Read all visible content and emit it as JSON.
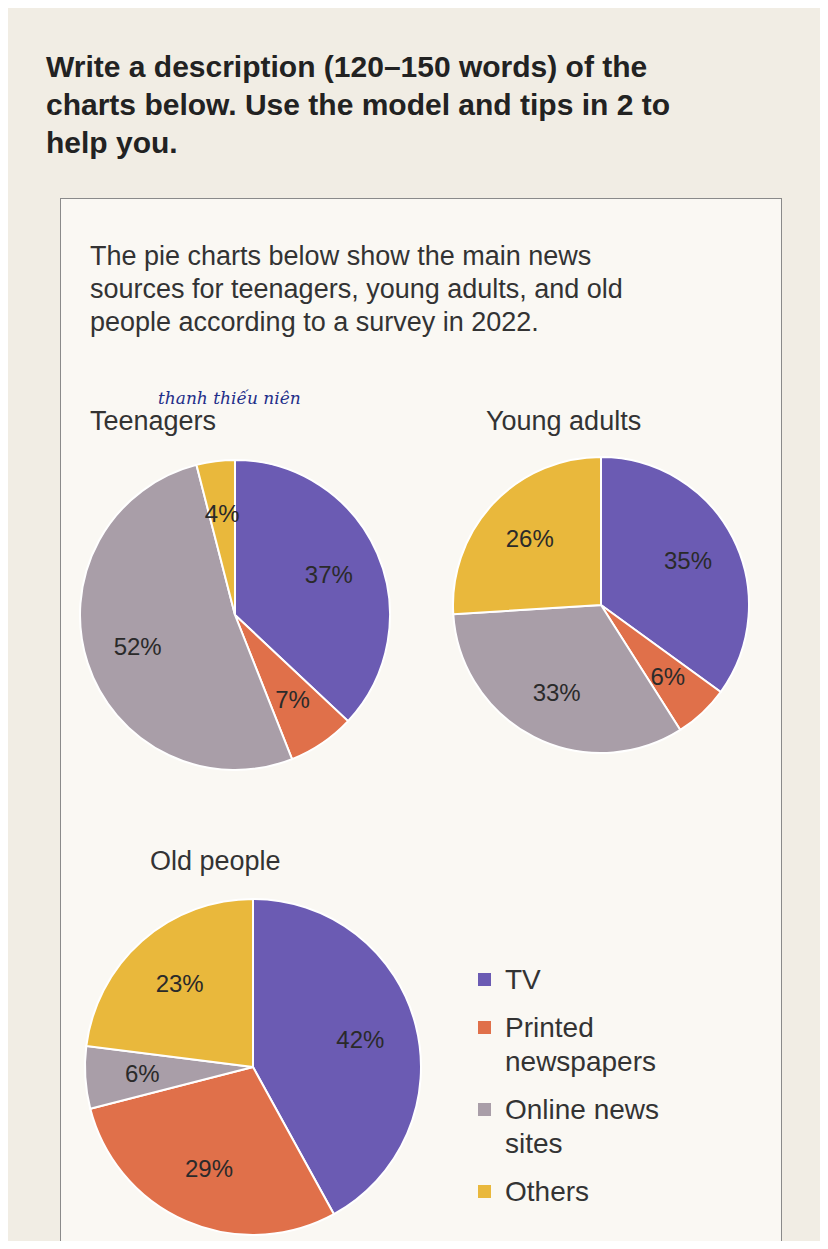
{
  "instruction": "Write a description (120–150 words) of the charts below. Use the model and tips in 2 to help you.",
  "description": "The pie charts below show the main news sources for teenagers, young adults, and old people according to a survey in 2022.",
  "chart_data": [
    {
      "type": "pie",
      "title": "Teenagers",
      "annotation": "thanh thiếu niên",
      "categories": [
        "TV",
        "Printed newspapers",
        "Online news sites",
        "Others"
      ],
      "values": [
        37,
        7,
        52,
        4
      ],
      "value_labels": [
        "37%",
        "7%",
        "52%",
        "4%"
      ],
      "colors": [
        "#6b5bb3",
        "#e0704a",
        "#a99ea8",
        "#e9b83c"
      ],
      "data_labels": true
    },
    {
      "type": "pie",
      "title": "Young adults",
      "categories": [
        "TV",
        "Printed newspapers",
        "Online news sites",
        "Others"
      ],
      "values": [
        35,
        6,
        33,
        26
      ],
      "value_labels": [
        "35%",
        "6%",
        "33%",
        "26%"
      ],
      "colors": [
        "#6b5bb3",
        "#e0704a",
        "#a99ea8",
        "#e9b83c"
      ],
      "data_labels": true
    },
    {
      "type": "pie",
      "title": "Old people",
      "categories": [
        "TV",
        "Printed newspapers",
        "Online news sites",
        "Others"
      ],
      "values": [
        42,
        29,
        6,
        23
      ],
      "value_labels": [
        "42%",
        "29%",
        "6%",
        "23%"
      ],
      "colors": [
        "#6b5bb3",
        "#e0704a",
        "#a99ea8",
        "#e9b83c"
      ],
      "data_labels": true,
      "legend": "right"
    }
  ]
}
